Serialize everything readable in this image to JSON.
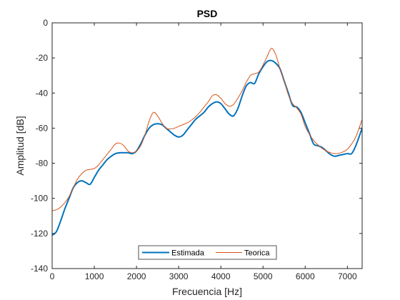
{
  "chart_data": {
    "type": "line",
    "title": "PSD",
    "xlabel": "Frecuencia [Hz]",
    "ylabel": "Amplitud [dB]",
    "xlim": [
      0,
      7350
    ],
    "ylim": [
      -140,
      0
    ],
    "xticks": [
      0,
      1000,
      2000,
      3000,
      4000,
      5000,
      6000,
      7000
    ],
    "yticks": [
      0,
      -20,
      -40,
      -60,
      -80,
      -100,
      -120,
      -140
    ],
    "grid": false,
    "legend_position": "bottom",
    "series": [
      {
        "name": "Estimada",
        "color": "#0072BD",
        "x": [
          0,
          100,
          200,
          300,
          400,
          500,
          600,
          700,
          800,
          900,
          1000,
          1100,
          1200,
          1300,
          1400,
          1500,
          1600,
          1700,
          1800,
          1900,
          2000,
          2100,
          2200,
          2300,
          2400,
          2500,
          2600,
          2700,
          2800,
          2900,
          3000,
          3100,
          3200,
          3300,
          3400,
          3500,
          3600,
          3700,
          3800,
          3900,
          4000,
          4100,
          4200,
          4300,
          4400,
          4500,
          4600,
          4700,
          4800,
          4900,
          5000,
          5100,
          5200,
          5300,
          5400,
          5500,
          5600,
          5700,
          5800,
          5900,
          6000,
          6100,
          6200,
          6300,
          6400,
          6500,
          6600,
          6700,
          6800,
          6900,
          7000,
          7100,
          7200,
          7350
        ],
        "y": [
          -121,
          -119,
          -113,
          -106,
          -100,
          -94,
          -91,
          -90,
          -91,
          -92,
          -88,
          -84,
          -81,
          -78,
          -76,
          -74.5,
          -74,
          -74,
          -74,
          -74.5,
          -73,
          -69,
          -64,
          -60,
          -58,
          -57.5,
          -58,
          -60,
          -62,
          -64,
          -65,
          -64,
          -61,
          -58,
          -55,
          -53,
          -51,
          -48,
          -46,
          -45,
          -46,
          -49,
          -52,
          -53,
          -49,
          -42,
          -36,
          -34,
          -34.5,
          -29,
          -25,
          -22,
          -21.5,
          -23,
          -26,
          -33,
          -40,
          -47,
          -48,
          -51,
          -57,
          -63,
          -69,
          -70,
          -71,
          -73,
          -75,
          -76,
          -75.5,
          -75,
          -74.5,
          -74.5,
          -70,
          -60
        ]
      },
      {
        "name": "Teorica",
        "color": "#D95319",
        "x": [
          0,
          100,
          200,
          300,
          400,
          500,
          600,
          700,
          800,
          900,
          1000,
          1100,
          1200,
          1300,
          1400,
          1500,
          1600,
          1700,
          1800,
          1900,
          2000,
          2100,
          2200,
          2300,
          2400,
          2500,
          2600,
          2700,
          2800,
          2900,
          3000,
          3100,
          3200,
          3300,
          3400,
          3500,
          3600,
          3700,
          3800,
          3900,
          4000,
          4100,
          4200,
          4300,
          4400,
          4500,
          4600,
          4700,
          4800,
          4900,
          5000,
          5100,
          5200,
          5300,
          5400,
          5500,
          5600,
          5700,
          5800,
          5900,
          6000,
          6100,
          6200,
          6300,
          6400,
          6500,
          6600,
          6700,
          6800,
          6900,
          7000,
          7100,
          7200,
          7350
        ],
        "y": [
          -107,
          -106.5,
          -105,
          -102.5,
          -99,
          -94,
          -89,
          -86,
          -84,
          -83.5,
          -83,
          -81,
          -78,
          -75,
          -72,
          -69,
          -68.5,
          -70,
          -73,
          -74,
          -73,
          -70,
          -64,
          -56,
          -51,
          -53,
          -57,
          -60,
          -60.5,
          -60,
          -59,
          -58,
          -57,
          -55.5,
          -53.5,
          -51,
          -48,
          -45,
          -41.5,
          -41,
          -43,
          -46,
          -47.5,
          -46.5,
          -43,
          -39,
          -34,
          -30,
          -29,
          -28,
          -24,
          -19,
          -14.5,
          -18,
          -26,
          -33,
          -41,
          -46,
          -48.5,
          -52,
          -59,
          -63.5,
          -67,
          -69.5,
          -71.5,
          -73,
          -74,
          -74.5,
          -74.3,
          -73.5,
          -72,
          -69,
          -65,
          -55
        ]
      }
    ]
  }
}
